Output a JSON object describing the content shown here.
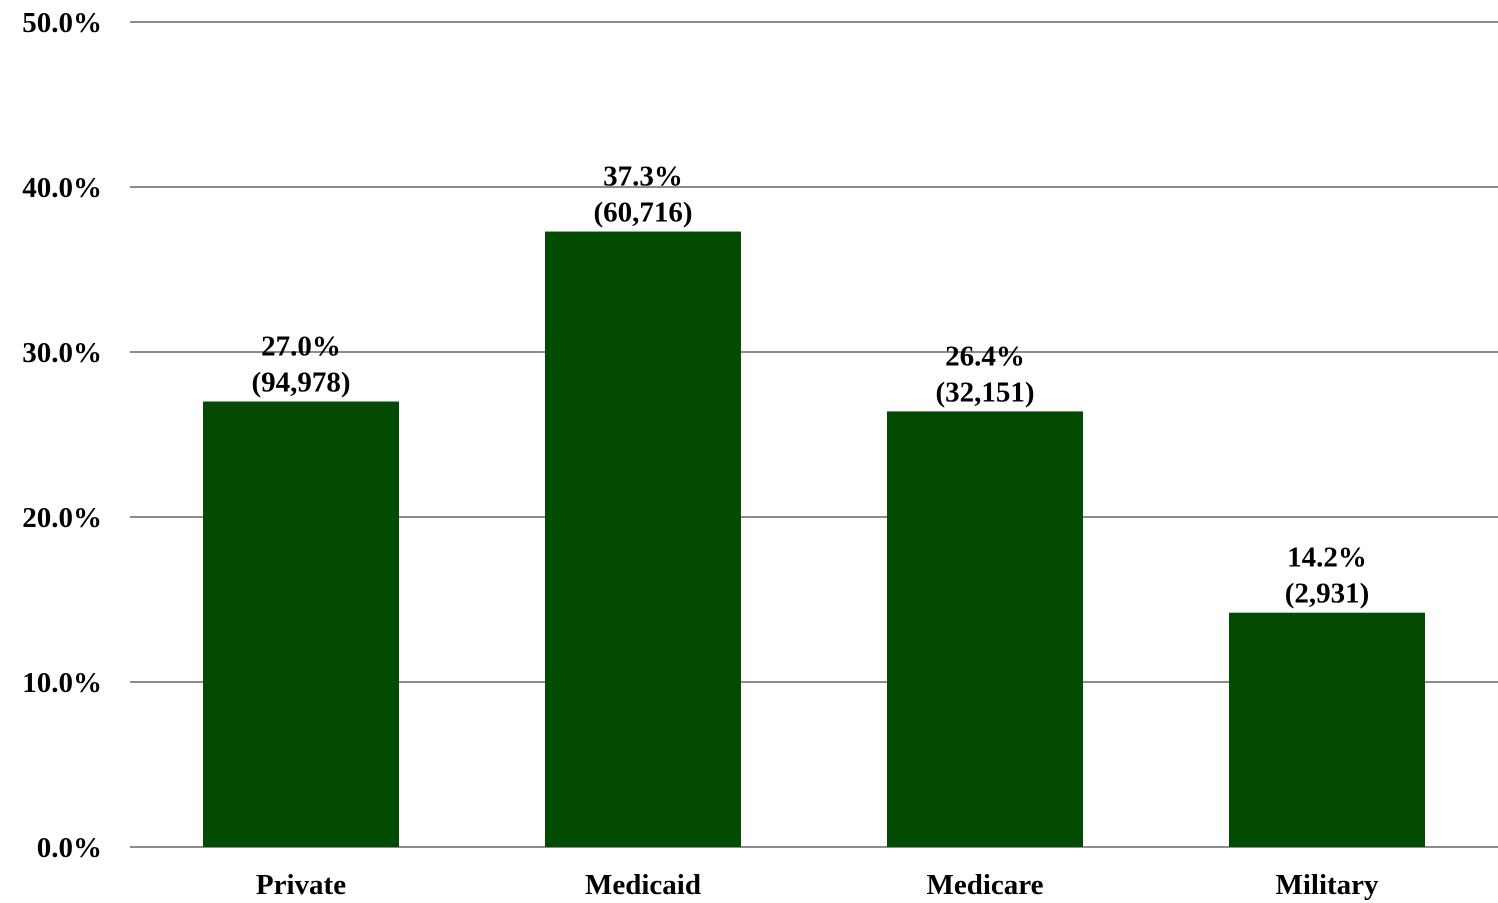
{
  "chart_data": {
    "type": "bar",
    "title": "",
    "xlabel": "",
    "ylabel": "",
    "categories": [
      "Private",
      "Medicaid",
      "Medicare",
      "Military"
    ],
    "values": [
      27.0,
      37.3,
      26.4,
      14.2
    ],
    "counts": [
      "(94,978)",
      "(60,716)",
      "(32,151)",
      "(2,931)"
    ],
    "value_labels": [
      "27.0%",
      "37.3%",
      "26.4%",
      "14.2%"
    ],
    "ylim": [
      0,
      50
    ],
    "yticks": [
      0,
      10,
      20,
      30,
      40,
      50
    ],
    "ytick_labels": [
      "0.0%",
      "10.0%",
      "20.0%",
      "30.0%",
      "40.0%",
      "50.0%"
    ],
    "grid": true,
    "legend": "none",
    "colors": {
      "bar": "#034a03",
      "grid": "#8c8c8c"
    }
  }
}
